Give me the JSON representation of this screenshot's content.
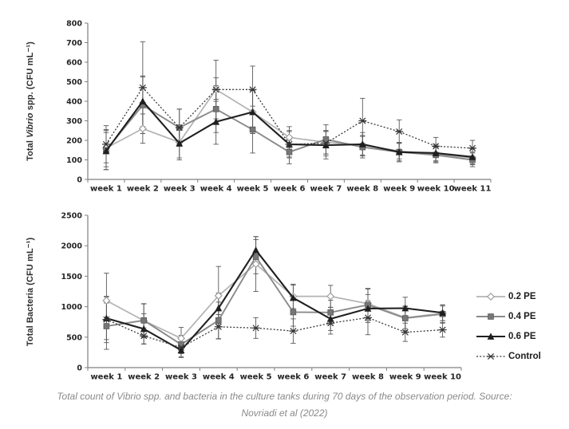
{
  "caption": {
    "line1": "Total count of Vibrio spp. and bacteria in the culture tanks during 70 days of the observation period. Source:",
    "line2": "Novriadi et al (2022)"
  },
  "legend": {
    "position": "right-middle",
    "items": [
      "0.2 PE",
      "0.4 PE",
      "0.6 PE",
      "Control"
    ]
  },
  "colors": {
    "pe02": "#b3b3b3",
    "pe04": "#8a8a8a",
    "pe06": "#1f1f1f",
    "control": "#383838",
    "error_bar": "#595959",
    "axis": "#808080",
    "tick_text": "#262626",
    "caption_text": "#8a8a8a"
  },
  "chart_data": [
    {
      "type": "line",
      "title": "",
      "ylabel": "Total Vibrio spp. (CFU mL⁻¹)",
      "ylabel_parts": [
        {
          "text": "Total "
        },
        {
          "text": "Vibrio",
          "italic": true
        },
        {
          "text": " spp. (CFU mL⁻¹)"
        }
      ],
      "categories": [
        "week 1",
        "week 2",
        "week 3",
        "week 4",
        "week 5",
        "week 6",
        "week 7",
        "week 8",
        "week 9",
        "week 10",
        "week 11"
      ],
      "ylim": [
        0,
        800
      ],
      "ytick_step": 100,
      "grid": false,
      "error_bars": true,
      "series": [
        {
          "name": "0.2 PE",
          "marker": "diamond",
          "color": "#b3b3b3",
          "marker_fill": "#ffffff",
          "marker_stroke": "#9e9e9e",
          "width": 1.7,
          "values": [
            160,
            260,
            190,
            460,
            345,
            215,
            190,
            175,
            145,
            130,
            110
          ],
          "errors": [
            95,
            75,
            80,
            60,
            110,
            55,
            60,
            50,
            40,
            35,
            30
          ]
        },
        {
          "name": "0.4 PE",
          "marker": "square",
          "color": "#8a8a8a",
          "marker_fill": "#777777",
          "marker_stroke": "#595959",
          "width": 1.9,
          "values": [
            150,
            380,
            265,
            360,
            255,
            140,
            205,
            165,
            140,
            125,
            100
          ],
          "errors": [
            100,
            145,
            95,
            120,
            120,
            60,
            75,
            55,
            45,
            40,
            35
          ]
        },
        {
          "name": "0.6 PE",
          "marker": "triangle",
          "color": "#1f1f1f",
          "marker_fill": "#1f1f1f",
          "marker_stroke": "#1f1f1f",
          "width": 2.1,
          "values": [
            145,
            400,
            185,
            295,
            345,
            180,
            175,
            180,
            140,
            135,
            115
          ],
          "errors": [
            95,
            130,
            85,
            115,
            110,
            65,
            70,
            60,
            50,
            45,
            40
          ]
        },
        {
          "name": "Control",
          "marker": "xcross",
          "color": "#383838",
          "marker_fill": "none",
          "marker_stroke": "#333333",
          "width": 1.3,
          "dash": "2,2.2",
          "values": [
            180,
            470,
            265,
            460,
            460,
            180,
            185,
            300,
            245,
            170,
            160
          ],
          "errors": [
            95,
            235,
            95,
            150,
            120,
            70,
            65,
            115,
            60,
            45,
            40
          ]
        }
      ]
    },
    {
      "type": "line",
      "title": "",
      "ylabel": "Total Bacteria (CFU mL⁻¹)",
      "ylabel_parts": [
        {
          "text": "Total Bacteria (CFU mL⁻¹)"
        }
      ],
      "categories": [
        "week 1",
        "week 2",
        "week 3",
        "week 4",
        "week 5",
        "week 6",
        "week 7",
        "week 8",
        "week 9",
        "week 10"
      ],
      "ylim": [
        0,
        2500
      ],
      "ytick_step": 500,
      "grid": false,
      "error_bars": true,
      "series": [
        {
          "name": "0.2 PE",
          "marker": "diamond",
          "color": "#b3b3b3",
          "marker_fill": "#ffffff",
          "marker_stroke": "#9e9e9e",
          "width": 1.7,
          "values": [
            1100,
            770,
            480,
            1180,
            1700,
            1170,
            1170,
            1050,
            820,
            890
          ],
          "errors": [
            450,
            280,
            180,
            480,
            450,
            200,
            180,
            250,
            180,
            120
          ]
        },
        {
          "name": "0.4 PE",
          "marker": "square",
          "color": "#8a8a8a",
          "marker_fill": "#777777",
          "marker_stroke": "#595959",
          "width": 1.9,
          "values": [
            680,
            775,
            380,
            775,
            1820,
            910,
            905,
            1030,
            810,
            880
          ],
          "errors": [
            380,
            270,
            150,
            300,
            280,
            230,
            200,
            260,
            200,
            150
          ]
        },
        {
          "name": "0.6 PE",
          "marker": "triangle",
          "color": "#1f1f1f",
          "marker_fill": "#1f1f1f",
          "marker_stroke": "#1f1f1f",
          "width": 2.1,
          "values": [
            810,
            635,
            285,
            975,
            1930,
            1145,
            800,
            970,
            975,
            900
          ],
          "errors": [
            350,
            250,
            120,
            250,
            220,
            210,
            190,
            230,
            180,
            130
          ]
        },
        {
          "name": "Control",
          "marker": "xcross",
          "color": "#383838",
          "marker_fill": "none",
          "marker_stroke": "#333333",
          "width": 1.3,
          "dash": "2,2.2",
          "values": [
            790,
            520,
            330,
            670,
            650,
            600,
            730,
            820,
            580,
            620
          ],
          "errors": [
            380,
            130,
            150,
            200,
            170,
            200,
            180,
            280,
            150,
            120
          ]
        }
      ]
    }
  ]
}
